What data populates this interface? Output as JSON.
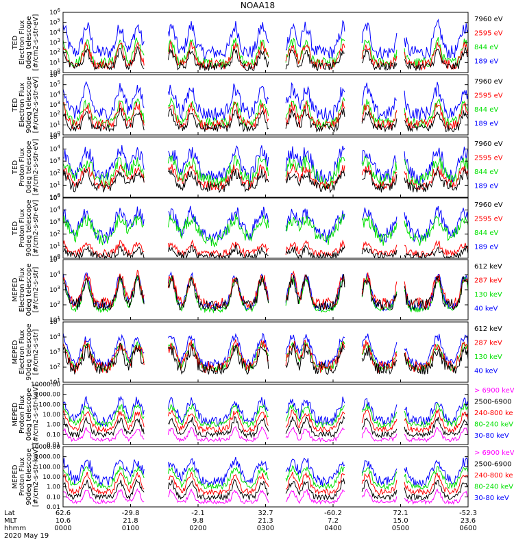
{
  "chart_data": {
    "type": "line",
    "title": "NOAA18",
    "date_label": "2020 May 19",
    "time_axis": {
      "row_labels": [
        "Lat",
        "MLT",
        "hhmm"
      ],
      "ticks": [
        {
          "hhmm": "0000",
          "lat": "62.6",
          "mlt": "10.6"
        },
        {
          "hhmm": "0100",
          "lat": "-29.8",
          "mlt": "21.8"
        },
        {
          "hhmm": "0200",
          "lat": "-2.1",
          "mlt": "9.8"
        },
        {
          "hhmm": "0300",
          "lat": "32.7",
          "mlt": "21.3"
        },
        {
          "hhmm": "0400",
          "lat": "-60.2",
          "mlt": "7.2"
        },
        {
          "hhmm": "0500",
          "lat": "72.1",
          "mlt": "15.0"
        },
        {
          "hhmm": "0600",
          "lat": "-52.3",
          "mlt": "23.6"
        }
      ],
      "range_hours": [
        0,
        6
      ]
    },
    "panels": [
      {
        "ylabel": [
          "TED",
          "Electron Flux",
          "0deg telescope",
          "[#/cm2-s-str-eV]"
        ],
        "yscale": "log",
        "ylim_exp": [
          0,
          6
        ],
        "tick_style": "pow",
        "legend": [
          {
            "text": "7960 eV",
            "color": "#000000"
          },
          {
            "text": "2595 eV",
            "color": "#ff0000"
          },
          {
            "text": "844 eV",
            "color": "#00e000"
          },
          {
            "text": "189 eV",
            "color": "#0000ff"
          }
        ],
        "profile": "ted_e0"
      },
      {
        "ylabel": [
          "TED",
          "Electron Flux",
          "90deg telescope",
          "[#/cm2-s-str-eV]"
        ],
        "yscale": "log",
        "ylim_exp": [
          0,
          6
        ],
        "tick_style": "pow",
        "legend": [
          {
            "text": "7960 eV",
            "color": "#000000"
          },
          {
            "text": "2595 eV",
            "color": "#ff0000"
          },
          {
            "text": "844 eV",
            "color": "#00e000"
          },
          {
            "text": "189 eV",
            "color": "#0000ff"
          }
        ],
        "profile": "ted_e90"
      },
      {
        "ylabel": [
          "TED",
          "Proton Flux",
          "0deg telescope",
          "[#/cm2-s-str-eV]"
        ],
        "yscale": "log",
        "ylim_exp": [
          0,
          5
        ],
        "tick_style": "pow",
        "legend": [
          {
            "text": "7960 eV",
            "color": "#000000"
          },
          {
            "text": "2595 eV",
            "color": "#ff0000"
          },
          {
            "text": "844 eV",
            "color": "#00e000"
          },
          {
            "text": "189 eV",
            "color": "#0000ff"
          }
        ],
        "profile": "ted_p0"
      },
      {
        "ylabel": [
          "TED",
          "Proton Flux",
          "90deg telescope",
          "[#/cm2-s-str-eV]"
        ],
        "yscale": "log",
        "ylim_exp": [
          0,
          5
        ],
        "tick_style": "pow",
        "legend": [
          {
            "text": "7960 eV",
            "color": "#000000"
          },
          {
            "text": "2595 eV",
            "color": "#ff0000"
          },
          {
            "text": "844 eV",
            "color": "#00e000"
          },
          {
            "text": "189 eV",
            "color": "#0000ff"
          }
        ],
        "profile": "ted_p90"
      },
      {
        "ylabel": [
          "MEPED",
          "Electron Flux",
          "0deg telescope",
          "[#/cm2-s-str]"
        ],
        "yscale": "log",
        "ylim_exp": [
          1,
          5
        ],
        "tick_style": "pow",
        "legend": [
          {
            "text": "612 keV",
            "color": "#000000"
          },
          {
            "text": "287 keV",
            "color": "#ff0000"
          },
          {
            "text": "130 keV",
            "color": "#00e000"
          },
          {
            "text": "40 keV",
            "color": "#0000ff"
          }
        ],
        "profile": "meped_e0"
      },
      {
        "ylabel": [
          "MEPED",
          "Electron Flux",
          "90deg telescope",
          "[#/cm2-s-str]"
        ],
        "yscale": "log",
        "ylim_exp": [
          1,
          5
        ],
        "tick_style": "pow",
        "legend": [
          {
            "text": "612 keV",
            "color": "#000000"
          },
          {
            "text": "287 keV",
            "color": "#ff0000"
          },
          {
            "text": "130 keV",
            "color": "#00e000"
          },
          {
            "text": "40 keV",
            "color": "#0000ff"
          }
        ],
        "profile": "meped_e90"
      },
      {
        "ylabel": [
          "MEPED",
          "Proton Flux",
          "0deg telescope",
          "[#/cm2-s-str-keV]"
        ],
        "yscale": "log",
        "ylim_exp": [
          -2,
          4
        ],
        "tick_style": "dec",
        "tick_labels": [
          "0.01",
          "0.10",
          "1.00",
          "10.00",
          "100.00",
          "1000.00",
          "10000.00"
        ],
        "legend": [
          {
            "text": "> 6900 keV",
            "color": "#ff00ff"
          },
          {
            "text": "2500-6900",
            "color": "#000000"
          },
          {
            "text": "240-800 ke",
            "color": "#ff0000"
          },
          {
            "text": "80-240 keV",
            "color": "#00e000"
          },
          {
            "text": "30-80 keV",
            "color": "#0000ff"
          }
        ],
        "profile": "meped_p0"
      },
      {
        "ylabel": [
          "MEPED",
          "Proton Flux",
          "90deg telescope",
          "[#/cm2-s-str-keV]"
        ],
        "yscale": "log",
        "ylim_exp": [
          -2,
          4
        ],
        "tick_style": "dec",
        "tick_labels": [
          "0.01",
          "0.10",
          "1.00",
          "10.00",
          "100.00",
          "1000.00",
          "10000.00"
        ],
        "legend": [
          {
            "text": "> 6900 keV",
            "color": "#ff00ff"
          },
          {
            "text": "2500-6900",
            "color": "#000000"
          },
          {
            "text": "240-800 ke",
            "color": "#ff0000"
          },
          {
            "text": "80-240 keV",
            "color": "#00e000"
          },
          {
            "text": "30-80 keV",
            "color": "#0000ff"
          }
        ],
        "profile": "meped_p90"
      }
    ],
    "passes_hours": [
      0.0,
      0.35,
      0.85,
      1.1,
      1.6,
      1.9,
      2.55,
      2.95,
      3.4,
      3.6,
      4.15,
      4.5,
      5.0,
      5.55,
      5.95
    ],
    "data_gaps_hours": [
      [
        1.2,
        1.55
      ],
      [
        3.05,
        3.3
      ],
      [
        4.18,
        4.42
      ],
      [
        4.95,
        5.05
      ]
    ]
  }
}
